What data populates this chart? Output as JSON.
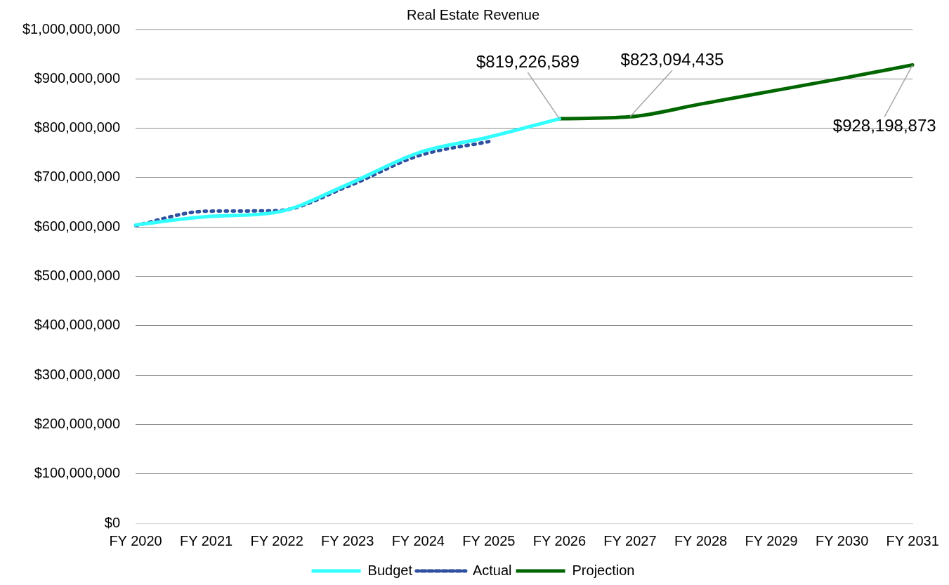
{
  "chart_data": {
    "type": "line",
    "title": "Real Estate Revenue",
    "categories": [
      "FY 2020",
      "FY 2021",
      "FY 2022",
      "FY 2023",
      "FY 2024",
      "FY 2025",
      "FY 2026",
      "FY 2027",
      "FY 2028",
      "FY 2029",
      "FY 2030",
      "FY 2031"
    ],
    "series": [
      {
        "name": "Budget",
        "color": "#33ffff",
        "line_style": "solid",
        "values": [
          604000000,
          621000000,
          630000000,
          686000000,
          750000000,
          782000000,
          819226589,
          null,
          null,
          null,
          null,
          null
        ]
      },
      {
        "name": "Actual",
        "color": "#2f4f9f",
        "line_style": "dotted",
        "values": [
          603000000,
          632000000,
          633000000,
          682000000,
          744000000,
          773000000,
          null,
          null,
          null,
          null,
          null,
          null
        ]
      },
      {
        "name": "Projection",
        "color": "#006600",
        "line_style": "solid",
        "values": [
          null,
          null,
          null,
          null,
          null,
          null,
          819226589,
          823094435,
          849000000,
          875000000,
          901000000,
          928198873
        ],
        "value_labels": [
          null,
          null,
          null,
          null,
          null,
          null,
          "$819,226,589",
          "$823,094,435",
          null,
          null,
          null,
          "$928,198,873"
        ]
      }
    ],
    "ylim": [
      0,
      1000000000
    ],
    "yticks": [
      {
        "value": 0,
        "label": "$0"
      },
      {
        "value": 100000000,
        "label": "$100,000,000"
      },
      {
        "value": 200000000,
        "label": "$200,000,000"
      },
      {
        "value": 300000000,
        "label": "$300,000,000"
      },
      {
        "value": 400000000,
        "label": "$400,000,000"
      },
      {
        "value": 500000000,
        "label": "$500,000,000"
      },
      {
        "value": 600000000,
        "label": "$600,000,000"
      },
      {
        "value": 700000000,
        "label": "$700,000,000"
      },
      {
        "value": 800000000,
        "label": "$800,000,000"
      },
      {
        "value": 900000000,
        "label": "$900,000,000"
      },
      {
        "value": 1000000000,
        "label": "$1,000,000,000"
      }
    ],
    "grid": "y",
    "legend": "bottom",
    "marker": "none"
  }
}
